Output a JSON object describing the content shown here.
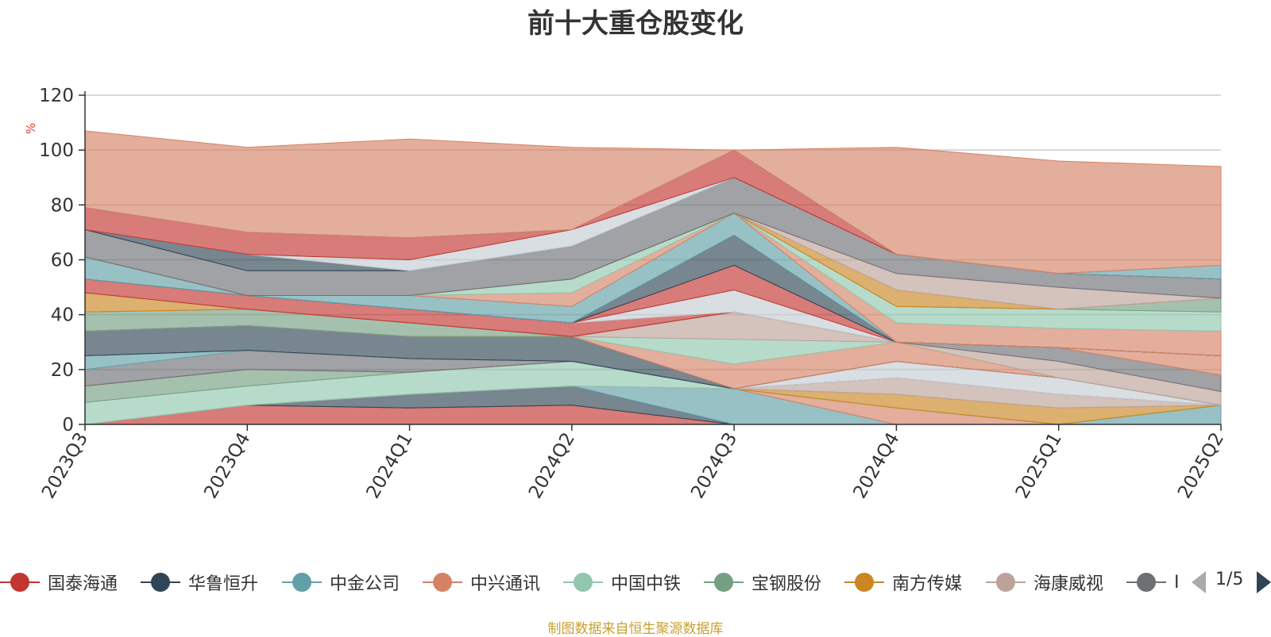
{
  "title": "前十大重仓股变化",
  "source_note": "制图数据来自恒生聚源数据库",
  "pager": {
    "text": "1/5"
  },
  "chart_data": {
    "type": "area",
    "stacked": true,
    "ylabel": "%",
    "ylim": [
      0,
      120
    ],
    "yticks": [
      0,
      20,
      40,
      60,
      80,
      100,
      120
    ],
    "grid": true,
    "categories": [
      "2023Q3",
      "2023Q4",
      "2024Q1",
      "2024Q2",
      "2024Q3",
      "2024Q4",
      "2025Q1",
      "2025Q2"
    ],
    "legend_position": "bottom",
    "legend_visible": [
      "国泰海通",
      "华鲁恒升",
      "中金公司",
      "中兴通讯",
      "中国中铁",
      "宝钢股份",
      "南方传媒",
      "海康威视",
      "I"
    ],
    "series": [
      {
        "color": "#c23531",
        "values": [
          0,
          7,
          6,
          7,
          0,
          0,
          0,
          0
        ]
      },
      {
        "color": "#2f4554",
        "values": [
          0,
          0,
          5,
          7,
          0,
          0,
          0,
          0
        ]
      },
      {
        "color": "#61a0a8",
        "values": [
          0,
          0,
          0,
          0,
          13,
          0,
          0,
          7
        ]
      },
      {
        "color": "#d48265",
        "values": [
          0,
          0,
          0,
          0,
          0,
          6,
          0,
          0
        ]
      },
      {
        "color": "#91c7ae",
        "values": [
          8,
          7,
          8,
          9,
          0,
          0,
          0,
          0
        ]
      },
      {
        "color": "#749f83",
        "values": [
          6,
          6,
          0,
          0,
          0,
          0,
          0,
          0
        ]
      },
      {
        "color": "#ca8622",
        "values": [
          0,
          0,
          0,
          0,
          0,
          5,
          6,
          0
        ]
      },
      {
        "color": "#bda29a",
        "values": [
          0,
          0,
          0,
          0,
          0,
          6,
          5,
          0
        ]
      },
      {
        "color": "#6e7074",
        "values": [
          6,
          7,
          5,
          0,
          0,
          0,
          0,
          0
        ]
      },
      {
        "color": "#c4ccd3",
        "values": [
          0,
          0,
          0,
          0,
          0,
          6,
          6,
          0
        ]
      },
      {
        "color": "#61a0a8",
        "values": [
          5,
          0,
          0,
          0,
          0,
          0,
          0,
          0
        ]
      },
      {
        "color": "#2f4554",
        "values": [
          9,
          9,
          8,
          9,
          0,
          0,
          0,
          0
        ]
      },
      {
        "color": "#d48265",
        "values": [
          0,
          0,
          0,
          0,
          9,
          7,
          0,
          0
        ]
      },
      {
        "color": "#91c7ae",
        "values": [
          0,
          0,
          0,
          0,
          9,
          0,
          0,
          0
        ]
      },
      {
        "color": "#bda29a",
        "values": [
          0,
          0,
          0,
          0,
          10,
          0,
          6,
          5
        ]
      },
      {
        "color": "#6e7074",
        "values": [
          0,
          0,
          0,
          0,
          0,
          0,
          5,
          6
        ]
      },
      {
        "color": "#d48265",
        "values": [
          0,
          0,
          0,
          0,
          0,
          0,
          0,
          7
        ]
      },
      {
        "color": "#749f83",
        "values": [
          7,
          6,
          5,
          0,
          0,
          0,
          0,
          0
        ]
      },
      {
        "color": "#ca8622",
        "values": [
          7,
          0,
          0,
          0,
          0,
          0,
          0,
          0
        ]
      },
      {
        "color": "#c23531",
        "values": [
          5,
          5,
          5,
          5,
          0,
          0,
          0,
          0
        ]
      },
      {
        "color": "#c4ccd3",
        "values": [
          0,
          0,
          0,
          0,
          8,
          0,
          0,
          0
        ]
      },
      {
        "color": "#c23531",
        "values": [
          0,
          0,
          0,
          0,
          9,
          0,
          0,
          0
        ]
      },
      {
        "color": "#2f4554",
        "values": [
          0,
          0,
          0,
          0,
          11,
          0,
          0,
          0
        ]
      },
      {
        "color": "#61a0a8",
        "values": [
          8,
          0,
          5,
          6,
          8,
          0,
          0,
          0
        ]
      },
      {
        "color": "#d48265",
        "values": [
          0,
          0,
          0,
          5,
          0,
          7,
          7,
          9
        ]
      },
      {
        "color": "#91c7ae",
        "values": [
          0,
          0,
          0,
          5,
          0,
          6,
          7,
          7
        ]
      },
      {
        "color": "#749f83",
        "values": [
          0,
          0,
          0,
          0,
          0,
          0,
          0,
          5
        ]
      },
      {
        "color": "#ca8622",
        "values": [
          0,
          0,
          0,
          0,
          0,
          6,
          0,
          0
        ]
      },
      {
        "color": "#bda29a",
        "values": [
          0,
          0,
          0,
          0,
          0,
          6,
          8,
          0
        ]
      },
      {
        "color": "#6e7074",
        "values": [
          10,
          9,
          9,
          12,
          13,
          7,
          5,
          7
        ]
      },
      {
        "color": "#2f4554",
        "values": [
          0,
          6,
          0,
          0,
          0,
          0,
          0,
          0
        ]
      },
      {
        "color": "#c4ccd3",
        "values": [
          0,
          0,
          4,
          6,
          0,
          0,
          0,
          0
        ]
      },
      {
        "color": "#c23531",
        "values": [
          8,
          8,
          8,
          0,
          10,
          0,
          0,
          0
        ]
      },
      {
        "color": "#61a0a8",
        "values": [
          0,
          0,
          0,
          0,
          0,
          0,
          0,
          5
        ]
      },
      {
        "color": "#d48265",
        "values": [
          28,
          31,
          36,
          30,
          0,
          39,
          41,
          36
        ]
      }
    ]
  }
}
